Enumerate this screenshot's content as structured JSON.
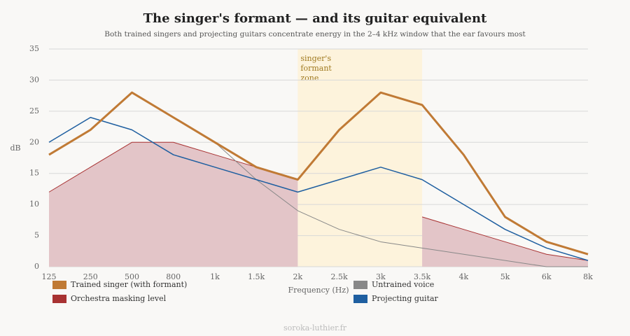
{
  "chart_data": {
    "type": "line",
    "title": "The singer's formant — and its guitar equivalent",
    "subtitle": "Both trained singers and projecting guitars concentrate energy in the 2–4 kHz window that the ear favours most",
    "x_label": "Frequency (Hz)",
    "y_label": "dB",
    "source": "soroka-luthier.fr",
    "categories": [
      "125",
      "250",
      "500",
      "800",
      "1k",
      "1.5k",
      "2k",
      "2.5k",
      "3k",
      "3.5k",
      "4k",
      "5k",
      "6k",
      "8k"
    ],
    "ylim": [
      0,
      35
    ],
    "yticks": [
      0,
      5,
      10,
      15,
      20,
      25,
      30,
      35
    ],
    "grid": true,
    "highlight": {
      "from": "2k",
      "to": "3.5k",
      "color": "#fdf3dc",
      "lines": [
        "singer's",
        "formant",
        "zone"
      ]
    },
    "series": [
      {
        "name": "Trained singer (with formant)",
        "color": "#c07a35",
        "width": 3,
        "values": [
          18,
          22,
          28,
          24,
          20,
          16,
          14,
          22,
          28,
          26,
          18,
          8,
          4,
          2
        ]
      },
      {
        "name": "Untrained voice",
        "color": "#888888",
        "width": 1,
        "values": [
          18,
          22,
          28,
          24,
          20,
          14,
          9,
          6,
          4,
          3,
          2,
          1,
          0,
          0
        ]
      },
      {
        "name": "Orchestra masking level",
        "color": "#a83232",
        "fill": "#e3c5c8",
        "area": true,
        "width": 1,
        "values": [
          12,
          16,
          20,
          20,
          18,
          16,
          14,
          null,
          null,
          8,
          6,
          4,
          2,
          1
        ]
      },
      {
        "name": "Projecting guitar",
        "color": "#1f5fa0",
        "width": 1.5,
        "values": [
          20,
          24,
          22,
          18,
          16,
          14,
          12,
          14,
          16,
          14,
          10,
          6,
          3,
          1
        ]
      }
    ],
    "draw_order": [
      2,
      1,
      3,
      0
    ]
  }
}
